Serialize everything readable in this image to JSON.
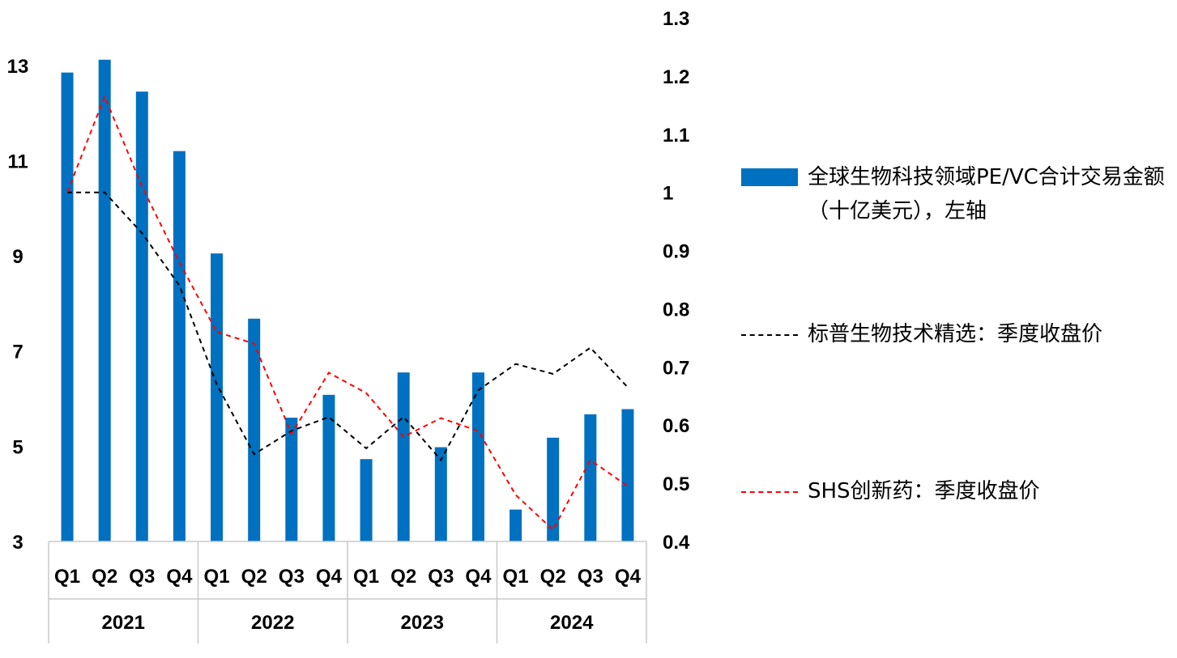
{
  "chart_data": {
    "type": "bar+line",
    "categories": [
      "Q1",
      "Q2",
      "Q3",
      "Q4",
      "Q1",
      "Q2",
      "Q3",
      "Q4",
      "Q1",
      "Q2",
      "Q3",
      "Q4",
      "Q1",
      "Q2",
      "Q3",
      "Q4"
    ],
    "groups": [
      {
        "label": "2021",
        "count": 4
      },
      {
        "label": "2022",
        "count": 4
      },
      {
        "label": "2023",
        "count": 4
      },
      {
        "label": "2024",
        "count": 4
      }
    ],
    "left_axis": {
      "min": 3,
      "max": 14,
      "ticks": [
        3,
        5,
        7,
        9,
        11,
        13
      ]
    },
    "right_axis": {
      "min": 0.4,
      "max": 1.3,
      "ticks": [
        "0.4",
        "0.5",
        "0.6",
        "0.7",
        "0.8",
        "0.9",
        "1",
        "1.1",
        "1.2",
        "1.3"
      ]
    },
    "series": [
      {
        "name": "全球生物科技领域PE/VC合计交易金额（十亿美元），左轴",
        "kind": "bar",
        "axis": "left",
        "color": "#0070c0",
        "values": [
          12.85,
          13.12,
          12.45,
          11.2,
          9.05,
          7.68,
          5.6,
          6.08,
          4.73,
          6.55,
          4.98,
          6.55,
          3.67,
          5.18,
          5.67,
          5.78
        ]
      },
      {
        "name": "标普生物技术精选：季度收盘价",
        "kind": "line",
        "axis": "right",
        "color": "#000000",
        "values": [
          1.0,
          1.0,
          0.93,
          0.84,
          0.67,
          0.55,
          0.59,
          0.614,
          0.56,
          0.614,
          0.54,
          0.66,
          0.705,
          0.688,
          0.733,
          0.665
        ]
      },
      {
        "name": "SHS创新药：季度收盘价",
        "kind": "line",
        "axis": "right",
        "color": "#ff0000",
        "values": [
          1.0,
          1.165,
          1.01,
          0.88,
          0.76,
          0.74,
          0.585,
          0.69,
          0.655,
          0.58,
          0.612,
          0.59,
          0.48,
          0.42,
          0.54,
          0.495
        ]
      }
    ],
    "grid": false,
    "legend_position": "right"
  }
}
